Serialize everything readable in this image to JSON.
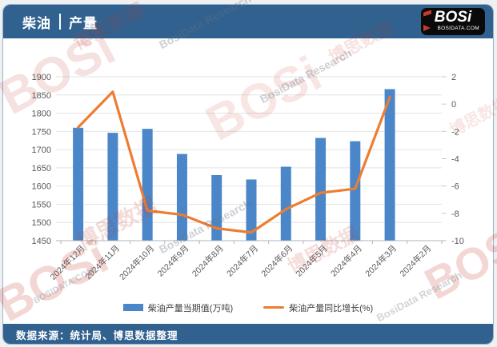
{
  "header": {
    "title_left": "柴油",
    "title_right": "产量",
    "logo": {
      "text": "BOSi",
      "subtext": "BOSIDATA.COM"
    }
  },
  "footer": {
    "source_label": "数据来源：统计局、博思数据整理"
  },
  "watermarks": {
    "brand": "BOSi",
    "brand_cn": "博思数据",
    "research": "BosiData Research",
    "domain": "BOSIDATA.COM"
  },
  "colors": {
    "brand_blue": "#31618F",
    "bar_blue": "#4A86C8",
    "line_orange": "#ED7D31",
    "logo_red": "#C23B2E",
    "axis_text": "#595959",
    "gridline": "#E2E4E6"
  },
  "chart_data": {
    "type": "bar",
    "subtype": "combo-bar-line",
    "title": "柴油 | 产量",
    "categories": [
      "2024年12月",
      "2024年11月",
      "2024年10月",
      "2024年9月",
      "2024年8月",
      "2024年7月",
      "2024年6月",
      "2024年5月",
      "2024年4月",
      "2024年3月",
      "2024年2月"
    ],
    "series": [
      {
        "name": "柴油产量当期值(万吨)",
        "type": "bar",
        "axis": "left",
        "color": "#4A86C8",
        "values": [
          1760,
          1746,
          1757,
          1688,
          1630,
          1618,
          1653,
          1732,
          1723,
          1866,
          null
        ]
      },
      {
        "name": "柴油产量同比增长(%)",
        "type": "line",
        "axis": "right",
        "color": "#ED7D31",
        "values": [
          -1.7,
          0.9,
          -7.8,
          -8.1,
          -9.1,
          -9.4,
          -7.7,
          -6.5,
          -6.2,
          0.5,
          null
        ]
      }
    ],
    "left_axis": {
      "min": 1450,
      "max": 1900,
      "step": 50,
      "ticks": [
        1900,
        1850,
        1800,
        1750,
        1700,
        1650,
        1600,
        1550,
        1500,
        1450
      ]
    },
    "right_axis": {
      "min": -10,
      "max": 2,
      "step": 2,
      "ticks": [
        2,
        0,
        -2,
        -4,
        -6,
        -8,
        -10
      ]
    },
    "grid": true,
    "legend_position": "bottom"
  }
}
